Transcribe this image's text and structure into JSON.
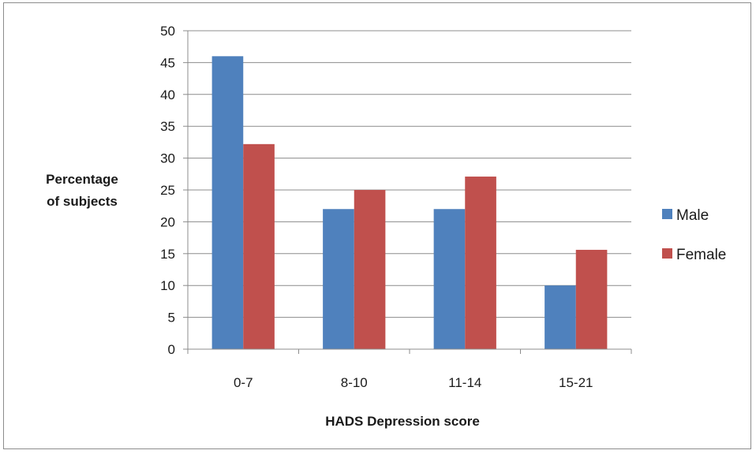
{
  "chart_data": {
    "type": "bar",
    "title": "",
    "xlabel": "HADS Depression score",
    "ylabel_lines": [
      "Percentage",
      "of subjects"
    ],
    "categories": [
      "0-7",
      "8-10",
      "11-14",
      "15-21"
    ],
    "series": [
      {
        "name": "Male",
        "color": "#4f81bd",
        "values": [
          46,
          22,
          22,
          10
        ]
      },
      {
        "name": "Female",
        "color": "#c0504d",
        "values": [
          32.2,
          25,
          27.1,
          15.6
        ]
      }
    ],
    "ylim": [
      0,
      50
    ],
    "yticks": [
      0,
      5,
      10,
      15,
      20,
      25,
      30,
      35,
      40,
      45,
      50
    ],
    "grid": true,
    "legend_position": "right"
  }
}
